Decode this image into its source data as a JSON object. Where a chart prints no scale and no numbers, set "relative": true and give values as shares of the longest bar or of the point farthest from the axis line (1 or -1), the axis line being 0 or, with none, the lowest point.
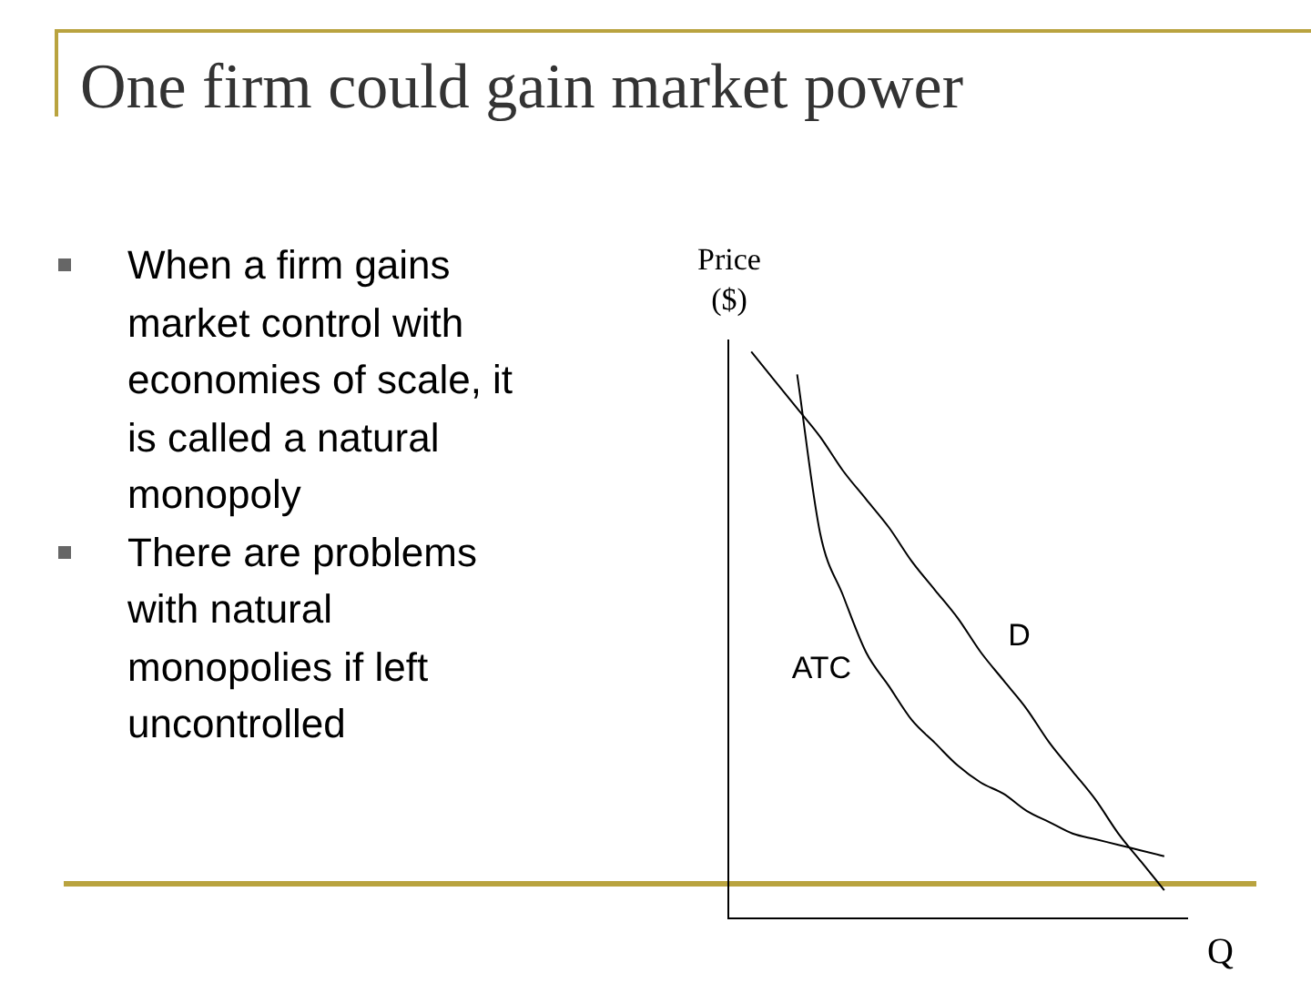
{
  "chart_data": {
    "type": "line",
    "title": "One firm could gain market power",
    "ylabel": "Price ($)",
    "xlabel": "Q",
    "relative": true,
    "grid": false,
    "legend": false,
    "marker": "none",
    "line_style": "solid",
    "annotations": [
      "When a firm gains market control with economies of scale, it is called a natural monopoly",
      "There are problems with natural monopolies if left uncontrolled"
    ],
    "categories": [
      null,
      null,
      null,
      null,
      null,
      null,
      null,
      null,
      null,
      null,
      null,
      null,
      null,
      null,
      null,
      null,
      null,
      null,
      null,
      null,
      null
    ],
    "series": [
      {
        "name": "D",
        "color": "#000000",
        "values": [
          null,
          1,
          0.95,
          0.9,
          0.85,
          0.79,
          0.74,
          0.69,
          0.63,
          0.58,
          0.53,
          0.47,
          0.42,
          0.37,
          0.31,
          0.26,
          0.21,
          0.15,
          0.1,
          0.05,
          null
        ]
      },
      {
        "name": "ATC",
        "color": "#000000",
        "values": [
          null,
          null,
          null,
          0.96,
          0.68,
          0.57,
          0.47,
          0.41,
          0.35,
          0.31,
          0.27,
          0.24,
          0.22,
          0.19,
          0.17,
          0.15,
          0.14,
          0.13,
          0.12,
          0.11,
          null
        ]
      }
    ]
  }
}
